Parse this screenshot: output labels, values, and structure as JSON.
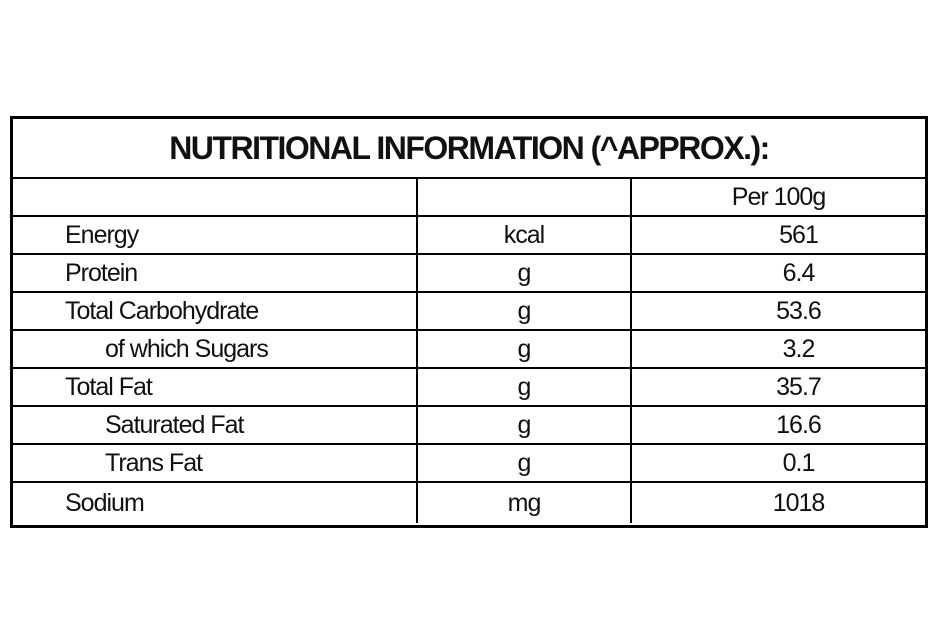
{
  "title": "NUTRITIONAL INFORMATION (^APPROX.):",
  "table": {
    "value_header": "Per 100g",
    "rows": [
      [
        "Energy",
        "kcal",
        "561"
      ],
      [
        "Protein",
        "g",
        "6.4"
      ],
      [
        "Total Carbohydrate",
        "g",
        "53.6"
      ],
      [
        "of which Sugars",
        "g",
        "3.2"
      ],
      [
        "Total Fat",
        "g",
        "35.7"
      ],
      [
        "Saturated Fat",
        "g",
        "16.6"
      ],
      [
        "Trans Fat",
        "g",
        "0.1"
      ],
      [
        "Sodium",
        "mg",
        "1018"
      ]
    ]
  }
}
